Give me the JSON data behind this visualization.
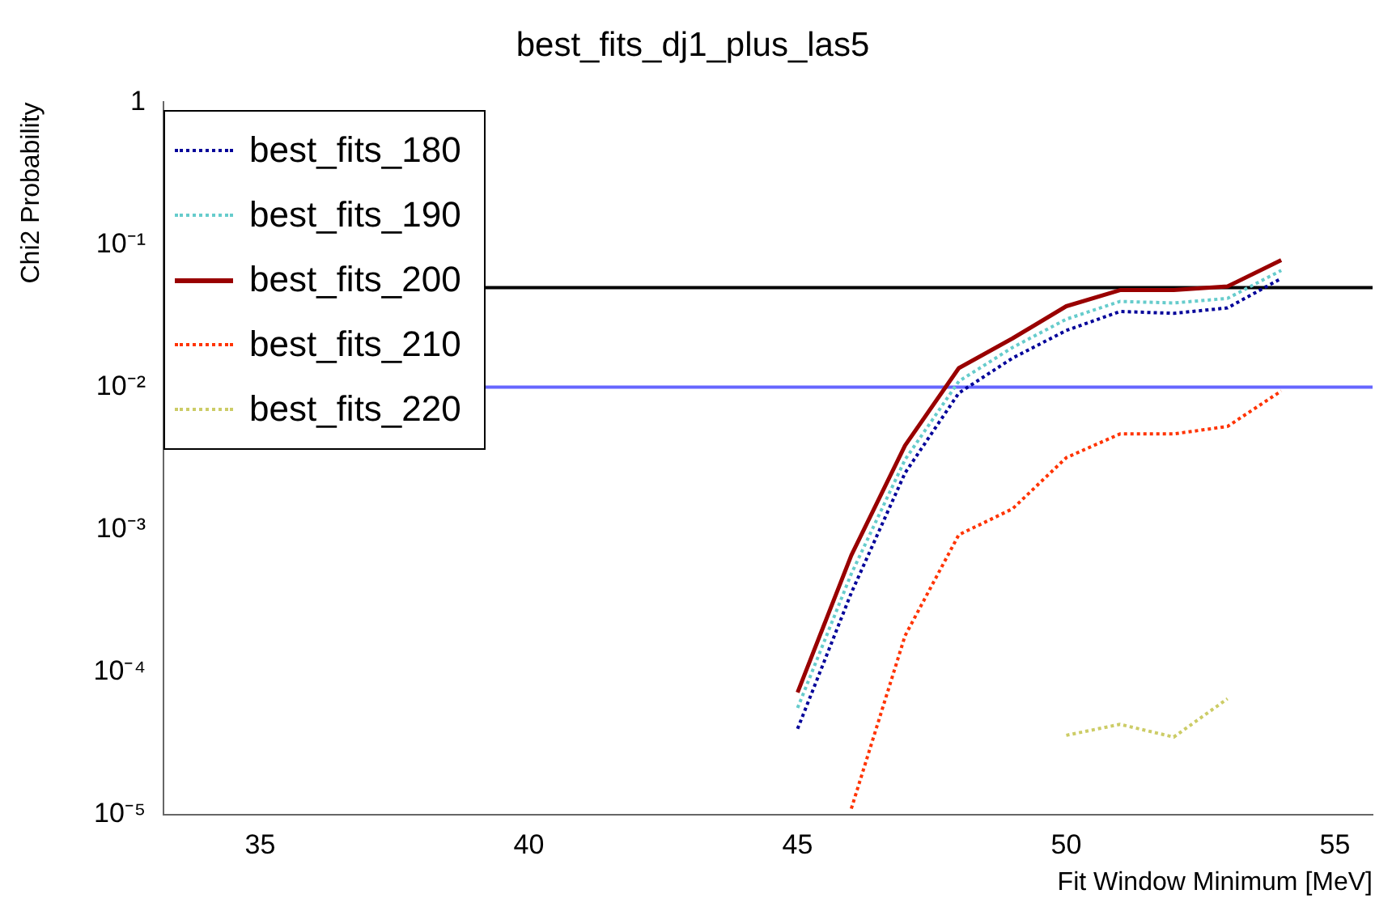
{
  "chart_data": {
    "type": "line",
    "title": "best_fits_dj1_plus_las5",
    "xlabel": "Fit Window Minimum [MeV]",
    "ylabel": "Chi2 Probability",
    "x": [
      45,
      46,
      47,
      48,
      49,
      50,
      51,
      52,
      53,
      54
    ],
    "series": [
      {
        "name": "best_fits_180",
        "color": "#000099",
        "line_style": "dotted",
        "values": [
          4e-05,
          0.00036,
          0.0025,
          0.0091,
          0.016,
          0.025,
          0.034,
          0.033,
          0.036,
          0.058
        ]
      },
      {
        "name": "best_fits_190",
        "color": "#66cccc",
        "line_style": "dotted",
        "values": [
          5.6e-05,
          0.00049,
          0.0031,
          0.011,
          0.019,
          0.03,
          0.04,
          0.039,
          0.042,
          0.066
        ]
      },
      {
        "name": "best_fits_200",
        "color": "#990000",
        "line_style": "solid",
        "values": [
          7.2e-05,
          0.00066,
          0.0039,
          0.0136,
          0.022,
          0.037,
          0.048,
          0.048,
          0.051,
          0.078
        ]
      },
      {
        "name": "best_fits_210",
        "color": "#ff3300",
        "line_style": "dotted",
        "values": [
          null,
          1.1e-05,
          0.00018,
          0.00092,
          0.0014,
          0.0032,
          0.0047,
          0.0047,
          0.0053,
          0.0094
        ]
      },
      {
        "name": "best_fits_220",
        "color": "#cccc66",
        "line_style": "dotted",
        "values": [
          null,
          null,
          null,
          null,
          null,
          3.6e-05,
          4.3e-05,
          3.5e-05,
          6.5e-05,
          null
        ]
      }
    ],
    "log": "y",
    "xlim": [
      33.2,
      55.7
    ],
    "ylim": [
      1e-05,
      1
    ],
    "xticks": [
      35,
      40,
      45,
      50,
      55
    ],
    "yticks": [
      {
        "value": 1e-05,
        "label": "10⁻⁵"
      },
      {
        "value": 0.0001,
        "label": "10⁻⁴"
      },
      {
        "value": 0.001,
        "label": "10⁻³"
      },
      {
        "value": 0.01,
        "label": "10⁻²"
      },
      {
        "value": 0.1,
        "label": "10⁻¹"
      },
      1
    ],
    "ref_lines": [
      {
        "axis": "y",
        "value": 0.05,
        "color": "#000000"
      },
      {
        "axis": "y",
        "value": 0.01,
        "color": "#6666ff"
      }
    ],
    "grid": false,
    "legend": "top left",
    "marker": "none"
  }
}
